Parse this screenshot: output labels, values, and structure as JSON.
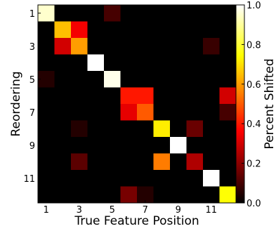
{
  "chart_data": {
    "type": "heatmap",
    "title": "",
    "xlabel": "True Feature Position",
    "ylabel": "Reordering",
    "colorbar_label": "Percent Shifted",
    "colormap": "hot",
    "vmin": 0.0,
    "vmax": 1.0,
    "rows": 12,
    "cols": 12,
    "x_ticks": [
      {
        "pos": 1,
        "label": "1"
      },
      {
        "pos": 3,
        "label": "3"
      },
      {
        "pos": 5,
        "label": "5"
      },
      {
        "pos": 7,
        "label": "7"
      },
      {
        "pos": 9,
        "label": "9"
      },
      {
        "pos": 11,
        "label": "11"
      }
    ],
    "y_ticks": [
      {
        "pos": 1,
        "label": "1"
      },
      {
        "pos": 3,
        "label": "3"
      },
      {
        "pos": 5,
        "label": "5"
      },
      {
        "pos": 7,
        "label": "7"
      },
      {
        "pos": 9,
        "label": "9"
      },
      {
        "pos": 11,
        "label": "11"
      }
    ],
    "colorbar_ticks": [
      {
        "value": 0.0,
        "label": "0.0"
      },
      {
        "value": 0.2,
        "label": "0.2"
      },
      {
        "value": 0.4,
        "label": "0.4"
      },
      {
        "value": 0.6,
        "label": "0.6"
      },
      {
        "value": 0.8,
        "label": "0.8"
      },
      {
        "value": 1.0,
        "label": "1.0"
      }
    ],
    "values": [
      [
        0.95,
        0.0,
        0.0,
        0.0,
        0.1,
        0.0,
        0.0,
        0.0,
        0.0,
        0.0,
        0.0,
        0.0
      ],
      [
        0.0,
        0.65,
        0.35,
        0.0,
        0.0,
        0.0,
        0.0,
        0.0,
        0.0,
        0.0,
        0.0,
        0.0
      ],
      [
        0.0,
        0.3,
        0.6,
        0.0,
        0.0,
        0.0,
        0.0,
        0.0,
        0.0,
        0.0,
        0.08,
        0.0
      ],
      [
        0.0,
        0.0,
        0.0,
        1.0,
        0.0,
        0.0,
        0.0,
        0.0,
        0.0,
        0.0,
        0.0,
        0.0
      ],
      [
        0.05,
        0.0,
        0.0,
        0.0,
        0.98,
        0.0,
        0.0,
        0.0,
        0.0,
        0.0,
        0.0,
        0.0
      ],
      [
        0.0,
        0.0,
        0.0,
        0.0,
        0.0,
        0.4,
        0.4,
        0.0,
        0.0,
        0.0,
        0.0,
        0.3
      ],
      [
        0.0,
        0.0,
        0.0,
        0.0,
        0.0,
        0.33,
        0.5,
        0.0,
        0.0,
        0.0,
        0.0,
        0.1
      ],
      [
        0.0,
        0.0,
        0.05,
        0.0,
        0.0,
        0.0,
        0.0,
        0.72,
        0.0,
        0.15,
        0.0,
        0.0
      ],
      [
        0.0,
        0.0,
        0.0,
        0.0,
        0.0,
        0.0,
        0.0,
        0.0,
        1.0,
        0.0,
        0.0,
        0.0
      ],
      [
        0.0,
        0.0,
        0.13,
        0.0,
        0.0,
        0.0,
        0.0,
        0.55,
        0.0,
        0.25,
        0.0,
        0.0
      ],
      [
        0.0,
        0.0,
        0.0,
        0.0,
        0.0,
        0.0,
        0.0,
        0.0,
        0.0,
        0.0,
        1.0,
        0.0
      ],
      [
        0.0,
        0.0,
        0.0,
        0.0,
        0.0,
        0.17,
        0.05,
        0.0,
        0.0,
        0.0,
        0.0,
        0.75
      ]
    ]
  }
}
